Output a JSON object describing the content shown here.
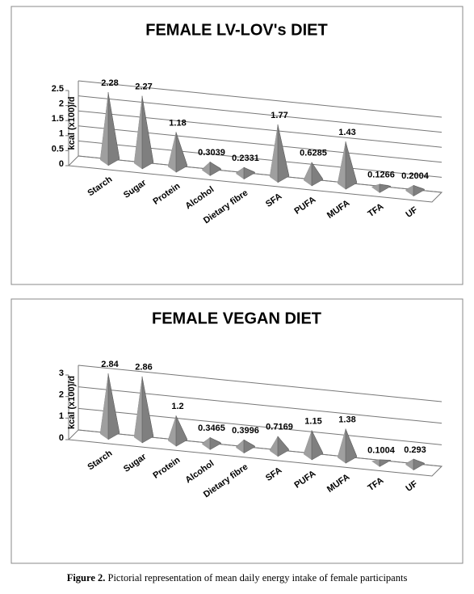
{
  "chart_data": [
    {
      "type": "pyramid",
      "title": "FEMALE  LV-LOV's DIET",
      "ylabel": "kcal (x100)/d",
      "categories": [
        "Starch",
        "Sugar",
        "Protein",
        "Alcohol",
        "Dietary fibre",
        "SFA",
        "PUFA",
        "MUFA",
        "TFA",
        "UF"
      ],
      "values": [
        2.28,
        2.27,
        1.18,
        0.3039,
        0.2331,
        1.77,
        0.6285,
        1.43,
        0.1266,
        0.2004
      ],
      "color": "#7f7f7f",
      "ylim": [
        0,
        2.5
      ],
      "yticks": [
        0,
        0.5,
        1,
        1.5,
        2,
        2.5
      ],
      "grid": true
    },
    {
      "type": "pyramid",
      "title": "FEMALE VEGAN DIET",
      "ylabel": "kcal (x100)/d",
      "categories": [
        "Starch",
        "Sugar",
        "Protein",
        "Alcohol",
        "Dietary fibre",
        "SFA",
        "PUFA",
        "MUFA",
        "TFA",
        "UF"
      ],
      "values": [
        2.84,
        2.86,
        1.2,
        0.3465,
        0.3996,
        0.7169,
        1.15,
        1.38,
        0.1004,
        0.293
      ],
      "color": "#7f7f7f",
      "ylim": [
        0,
        3
      ],
      "yticks": [
        0,
        1,
        2,
        3
      ],
      "grid": true
    }
  ],
  "caption": {
    "label": "Figure 2.",
    "text": "Pictorial representation of mean daily energy intake of female participants"
  }
}
